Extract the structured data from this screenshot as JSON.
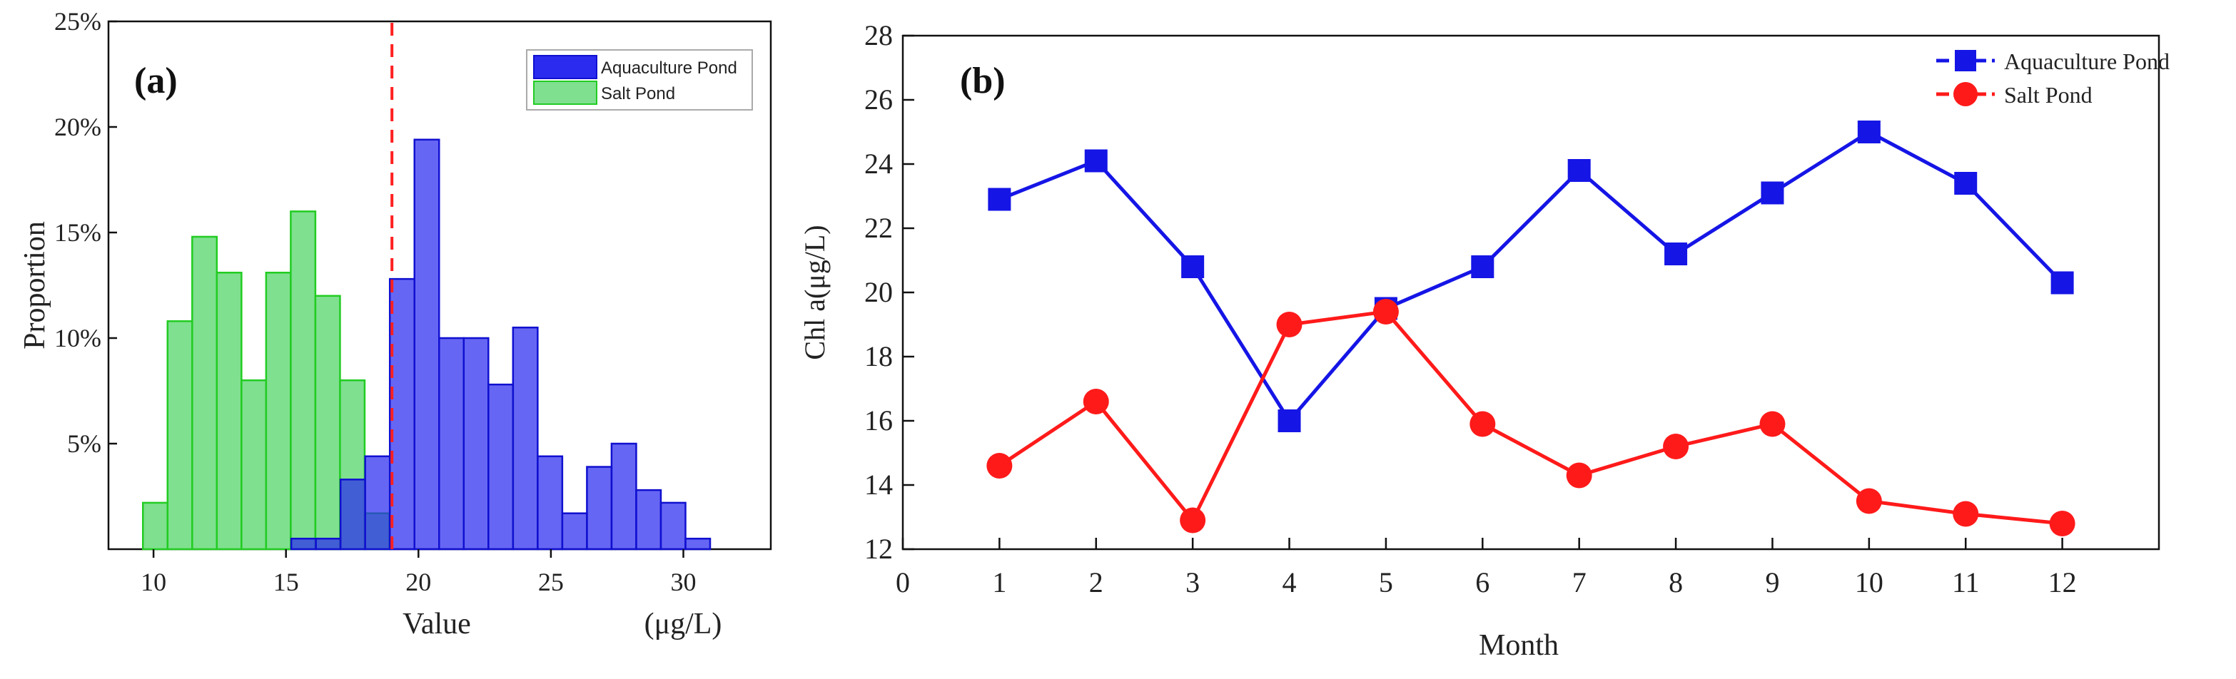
{
  "chart_data": [
    {
      "type": "histogram",
      "panel_label": "(a)",
      "xlabel": "Value",
      "unit_label": "(μg/L)",
      "ylabel": "Proportion",
      "xlim": [
        8.3,
        33.3
      ],
      "ylim": [
        0,
        0.25
      ],
      "x_ticks": [
        10,
        15,
        20,
        25,
        30
      ],
      "y_ticks": [
        {
          "value": 0.05,
          "label": "5%"
        },
        {
          "value": 0.1,
          "label": "10%"
        },
        {
          "value": 0.15,
          "label": "15%"
        },
        {
          "value": 0.2,
          "label": "20%"
        },
        {
          "value": 0.25,
          "label": "25%"
        }
      ],
      "bin_width": 0.93,
      "threshold": 19.0,
      "threshold_color": "#ff2020",
      "legend_position": "top-right",
      "series": [
        {
          "name": "Aquaculture Pond",
          "color": "#2b2bf0",
          "edge": "#1010d0",
          "bins_start": [
            15.2,
            16.13,
            17.06,
            17.99,
            18.92,
            19.85,
            20.78,
            21.71,
            22.64,
            23.57,
            24.5,
            25.43,
            26.36,
            27.29,
            28.22,
            29.15,
            30.08,
            31.01
          ],
          "values": [
            0.005,
            0.005,
            0.033,
            0.044,
            0.128,
            0.194,
            0.1,
            0.1,
            0.078,
            0.105,
            0.044,
            0.017,
            0.039,
            0.05,
            0.028,
            0.022,
            0.005,
            0
          ]
        },
        {
          "name": "Salt Pond",
          "color": "#7fe08f",
          "edge": "#22cc22",
          "bins_start": [
            9.6,
            10.53,
            11.46,
            12.39,
            13.32,
            14.25,
            15.18,
            16.11,
            17.04,
            17.97,
            18.9
          ],
          "values": [
            0.022,
            0.108,
            0.148,
            0.131,
            0.08,
            0.131,
            0.16,
            0.12,
            0.08,
            0.017,
            0
          ]
        }
      ]
    },
    {
      "type": "line",
      "panel_label": "(b)",
      "xlabel": "Month",
      "ylabel": "Chl a(μg/L)",
      "xlim": [
        0,
        13
      ],
      "ylim": [
        12,
        28
      ],
      "x_ticks": [
        0,
        1,
        2,
        3,
        4,
        5,
        6,
        7,
        8,
        9,
        10,
        11,
        12
      ],
      "y_ticks": [
        12,
        14,
        16,
        18,
        20,
        22,
        24,
        26,
        28
      ],
      "legend_position": "top-right",
      "series": [
        {
          "name": "Aquaculture Pond",
          "color": "#1515e6",
          "marker": "square",
          "x": [
            1,
            2,
            3,
            4,
            5,
            6,
            7,
            8,
            9,
            10,
            11,
            12
          ],
          "values": [
            22.9,
            24.1,
            20.8,
            16.0,
            19.5,
            20.8,
            23.8,
            21.2,
            23.1,
            25.0,
            23.4,
            20.3
          ]
        },
        {
          "name": "Salt Pond",
          "color": "#ff1a1a",
          "marker": "circle",
          "x": [
            1,
            2,
            3,
            4,
            5,
            6,
            7,
            8,
            9,
            10,
            11,
            12
          ],
          "values": [
            14.6,
            16.6,
            12.9,
            19.0,
            19.4,
            15.9,
            14.3,
            15.2,
            15.9,
            13.5,
            13.1,
            12.8
          ]
        }
      ]
    }
  ]
}
